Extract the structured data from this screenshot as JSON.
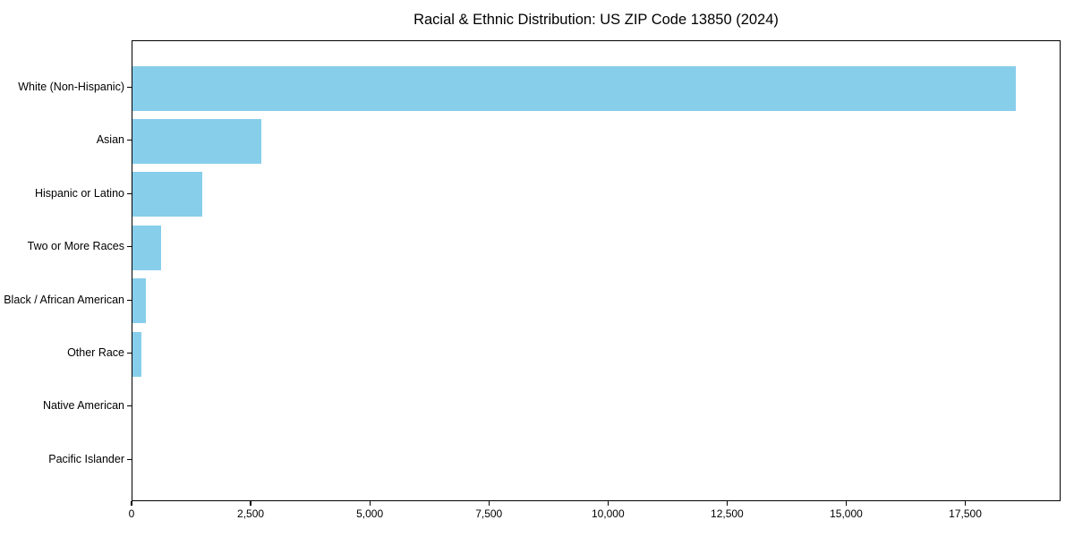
{
  "title": "Racial & Ethnic Distribution: US ZIP Code 13850 (2024)",
  "chart_data": {
    "type": "bar",
    "orientation": "horizontal",
    "title": "Racial & Ethnic Distribution: US ZIP Code 13850 (2024)",
    "categories": [
      "White (Non-Hispanic)",
      "Asian",
      "Hispanic or Latino",
      "Two or More Races",
      "Black / African American",
      "Other Race",
      "Native American",
      "Pacific Islander"
    ],
    "values": [
      18570,
      2710,
      1470,
      600,
      290,
      180,
      0,
      0
    ],
    "xlabel": "",
    "ylabel": "",
    "xlim": [
      0,
      19500
    ],
    "xticks": [
      0,
      2500,
      5000,
      7500,
      10000,
      12500,
      15000,
      17500
    ],
    "xtick_labels": [
      "0",
      "2,500",
      "5,000",
      "7,500",
      "10,000",
      "12,500",
      "15,000",
      "17,500"
    ],
    "bar_color": "#87CEEB",
    "spine_color": "#000000",
    "background_color": "#FFFFFF",
    "grid": false,
    "legend": null
  }
}
